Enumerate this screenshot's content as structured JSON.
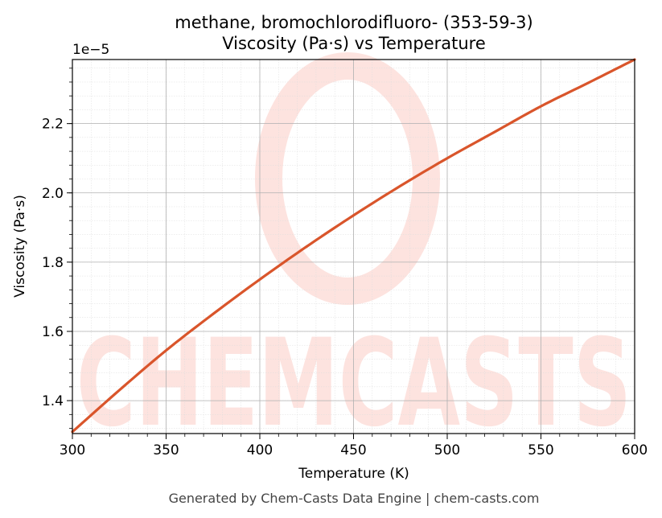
{
  "chart_data": {
    "type": "line",
    "title": "methane, bromochlorodifluoro- (353-59-3)",
    "subtitle": "Viscosity (Pa·s) vs Temperature",
    "xlabel": "Temperature (K)",
    "ylabel": "Viscosity (Pa·s)",
    "y_offset_label": "1e−5",
    "y_scale_factor": 1e-05,
    "xlim": [
      300,
      600
    ],
    "ylim": [
      1.305,
      2.385
    ],
    "x_ticks": [
      300,
      350,
      400,
      450,
      500,
      550,
      600
    ],
    "y_ticks": [
      1.4,
      1.6,
      1.8,
      2.0,
      2.2
    ],
    "grid": true,
    "series": [
      {
        "color": "#d9552b",
        "x": [
          300,
          325,
          350,
          375,
          400,
          425,
          450,
          475,
          500,
          525,
          550,
          575,
          600
        ],
        "y": [
          1.31,
          1.43,
          1.545,
          1.65,
          1.75,
          1.845,
          1.935,
          2.02,
          2.1,
          2.175,
          2.25,
          2.317,
          2.385
        ]
      }
    ]
  },
  "watermark": {
    "text": "CHEMCASTS",
    "color": "#fde3df"
  },
  "footer": "Generated by Chem-Casts Data Engine | chem-casts.com"
}
